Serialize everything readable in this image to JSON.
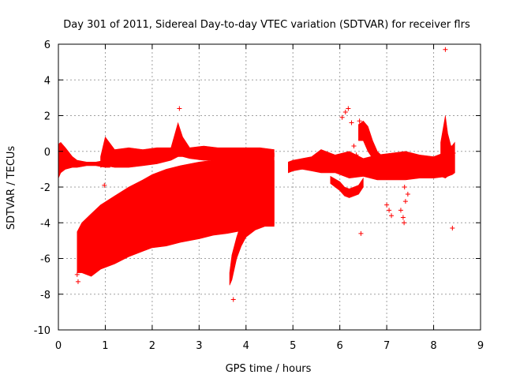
{
  "chart_data": {
    "type": "scatter",
    "title": "Day 301 of 2011, Sidereal Day-to-day VTEC variation (SDTVAR) for receiver flrs",
    "xlabel": "GPS time / hours",
    "ylabel": "SDTVAR / TECUs",
    "xlim": [
      0,
      9
    ],
    "ylim": [
      -10,
      6
    ],
    "xticks": [
      "0",
      "1",
      "2",
      "3",
      "4",
      "5",
      "6",
      "7",
      "8",
      "9"
    ],
    "yticks": [
      "-10",
      "-8",
      "-6",
      "-4",
      "-2",
      "0",
      "2",
      "4",
      "6"
    ],
    "grid": true,
    "marker": "+",
    "color": "#ff0000",
    "bands": [
      {
        "x": [
          0.0,
          0.05,
          0.15,
          0.3,
          0.4,
          0.6,
          0.8,
          1.0,
          1.1
        ],
        "ylow": [
          -1.5,
          -1.2,
          -1.0,
          -0.9,
          -0.9,
          -0.8,
          -0.8,
          -0.9,
          -0.9
        ],
        "yhigh": [
          0.4,
          0.5,
          0.2,
          -0.3,
          -0.5,
          -0.6,
          -0.6,
          -0.5,
          -0.5
        ]
      },
      {
        "x": [
          0.4,
          0.5,
          0.7,
          0.9,
          1.2,
          1.5,
          1.8,
          2.0,
          2.3,
          2.6,
          3.0,
          3.3,
          3.6,
          4.0,
          4.3,
          4.6
        ],
        "ylow": [
          -6.8,
          -6.8,
          -7.0,
          -6.6,
          -6.3,
          -5.9,
          -5.6,
          -5.4,
          -5.3,
          -5.1,
          -4.9,
          -4.7,
          -4.6,
          -4.4,
          -4.2,
          -4.1
        ],
        "yhigh": [
          -4.5,
          -4.0,
          -3.5,
          -3.0,
          -2.5,
          -2.0,
          -1.6,
          -1.3,
          -1.0,
          -0.8,
          -0.6,
          -0.5,
          -0.4,
          -0.3,
          -0.2,
          -0.1
        ]
      },
      {
        "x": [
          0.9,
          1.0,
          1.2,
          1.5,
          1.8,
          2.1,
          2.4,
          2.55,
          2.65,
          2.8,
          3.1,
          3.4,
          3.7,
          4.0,
          4.3,
          4.6
        ],
        "ylow": [
          -0.9,
          -0.8,
          -0.9,
          -0.9,
          -0.8,
          -0.7,
          -0.5,
          -0.3,
          -0.3,
          -0.4,
          -0.5,
          -0.5,
          -0.4,
          -0.4,
          -0.3,
          -0.3
        ],
        "yhigh": [
          -0.3,
          0.8,
          0.1,
          0.2,
          0.1,
          0.2,
          0.2,
          1.6,
          0.8,
          0.2,
          0.3,
          0.2,
          0.2,
          0.2,
          0.2,
          0.1
        ]
      },
      {
        "x": [
          3.65,
          3.7,
          3.8,
          3.9,
          4.0,
          4.2,
          4.4,
          4.6
        ],
        "ylow": [
          -7.5,
          -7.2,
          -6.0,
          -5.3,
          -4.8,
          -4.4,
          -4.2,
          -4.2
        ],
        "yhigh": [
          -6.8,
          -5.8,
          -4.8,
          -4.0,
          -3.5,
          -3.0,
          -2.0,
          -0.5
        ]
      },
      {
        "x": [
          4.9,
          5.0,
          5.2,
          5.4,
          5.6,
          5.9,
          6.2,
          6.5,
          6.8,
          7.1,
          7.4,
          7.7,
          8.0,
          8.3,
          8.45
        ],
        "ylow": [
          -1.2,
          -1.1,
          -1.0,
          -1.1,
          -1.2,
          -1.2,
          -1.5,
          -1.4,
          -1.6,
          -1.6,
          -1.6,
          -1.5,
          -1.5,
          -1.4,
          -1.2
        ],
        "yhigh": [
          -0.6,
          -0.5,
          -0.4,
          -0.3,
          0.1,
          -0.2,
          0.0,
          -0.4,
          -0.2,
          -0.1,
          0.0,
          -0.2,
          -0.3,
          0.0,
          0.5
        ]
      },
      {
        "x": [
          5.8,
          6.0,
          6.1,
          6.2,
          6.4,
          6.5
        ],
        "ylow": [
          -1.8,
          -2.2,
          -2.5,
          -2.6,
          -2.4,
          -2.0
        ],
        "yhigh": [
          -1.4,
          -1.7,
          -2.0,
          -2.1,
          -1.9,
          -1.5
        ]
      },
      {
        "x": [
          6.4,
          6.5,
          6.6,
          6.7,
          6.8,
          7.0
        ],
        "ylow": [
          0.6,
          0.6,
          0.0,
          -0.4,
          -0.8,
          -1.1
        ],
        "yhigh": [
          1.5,
          1.7,
          1.4,
          0.6,
          0.0,
          -0.5
        ]
      },
      {
        "x": [
          8.15,
          8.25,
          8.3,
          8.4,
          8.45
        ],
        "ylow": [
          -1.4,
          -1.5,
          -1.4,
          -1.3,
          -1.2
        ],
        "yhigh": [
          0.5,
          2.0,
          1.0,
          0.0,
          -0.2
        ]
      }
    ],
    "points": [
      [
        0.4,
        -6.9
      ],
      [
        0.42,
        -7.3
      ],
      [
        0.98,
        -1.9
      ],
      [
        2.58,
        2.4
      ],
      [
        3.73,
        -8.3
      ],
      [
        4.0,
        -3.7
      ],
      [
        6.05,
        1.9
      ],
      [
        6.12,
        2.2
      ],
      [
        6.18,
        2.4
      ],
      [
        6.25,
        1.6
      ],
      [
        6.27,
        -0.7
      ],
      [
        6.3,
        0.3
      ],
      [
        6.35,
        -0.2
      ],
      [
        6.42,
        1.7
      ],
      [
        6.45,
        -4.6
      ],
      [
        6.5,
        1.4
      ],
      [
        7.0,
        -3.0
      ],
      [
        7.05,
        -3.3
      ],
      [
        7.1,
        -3.6
      ],
      [
        7.3,
        -3.3
      ],
      [
        7.35,
        -3.7
      ],
      [
        7.37,
        -4.0
      ],
      [
        7.4,
        -2.8
      ],
      [
        7.45,
        -2.4
      ],
      [
        7.38,
        -2.0
      ],
      [
        8.25,
        5.7
      ],
      [
        8.4,
        -4.3
      ],
      [
        8.35,
        0.3
      ],
      [
        8.42,
        -0.1
      ]
    ]
  }
}
